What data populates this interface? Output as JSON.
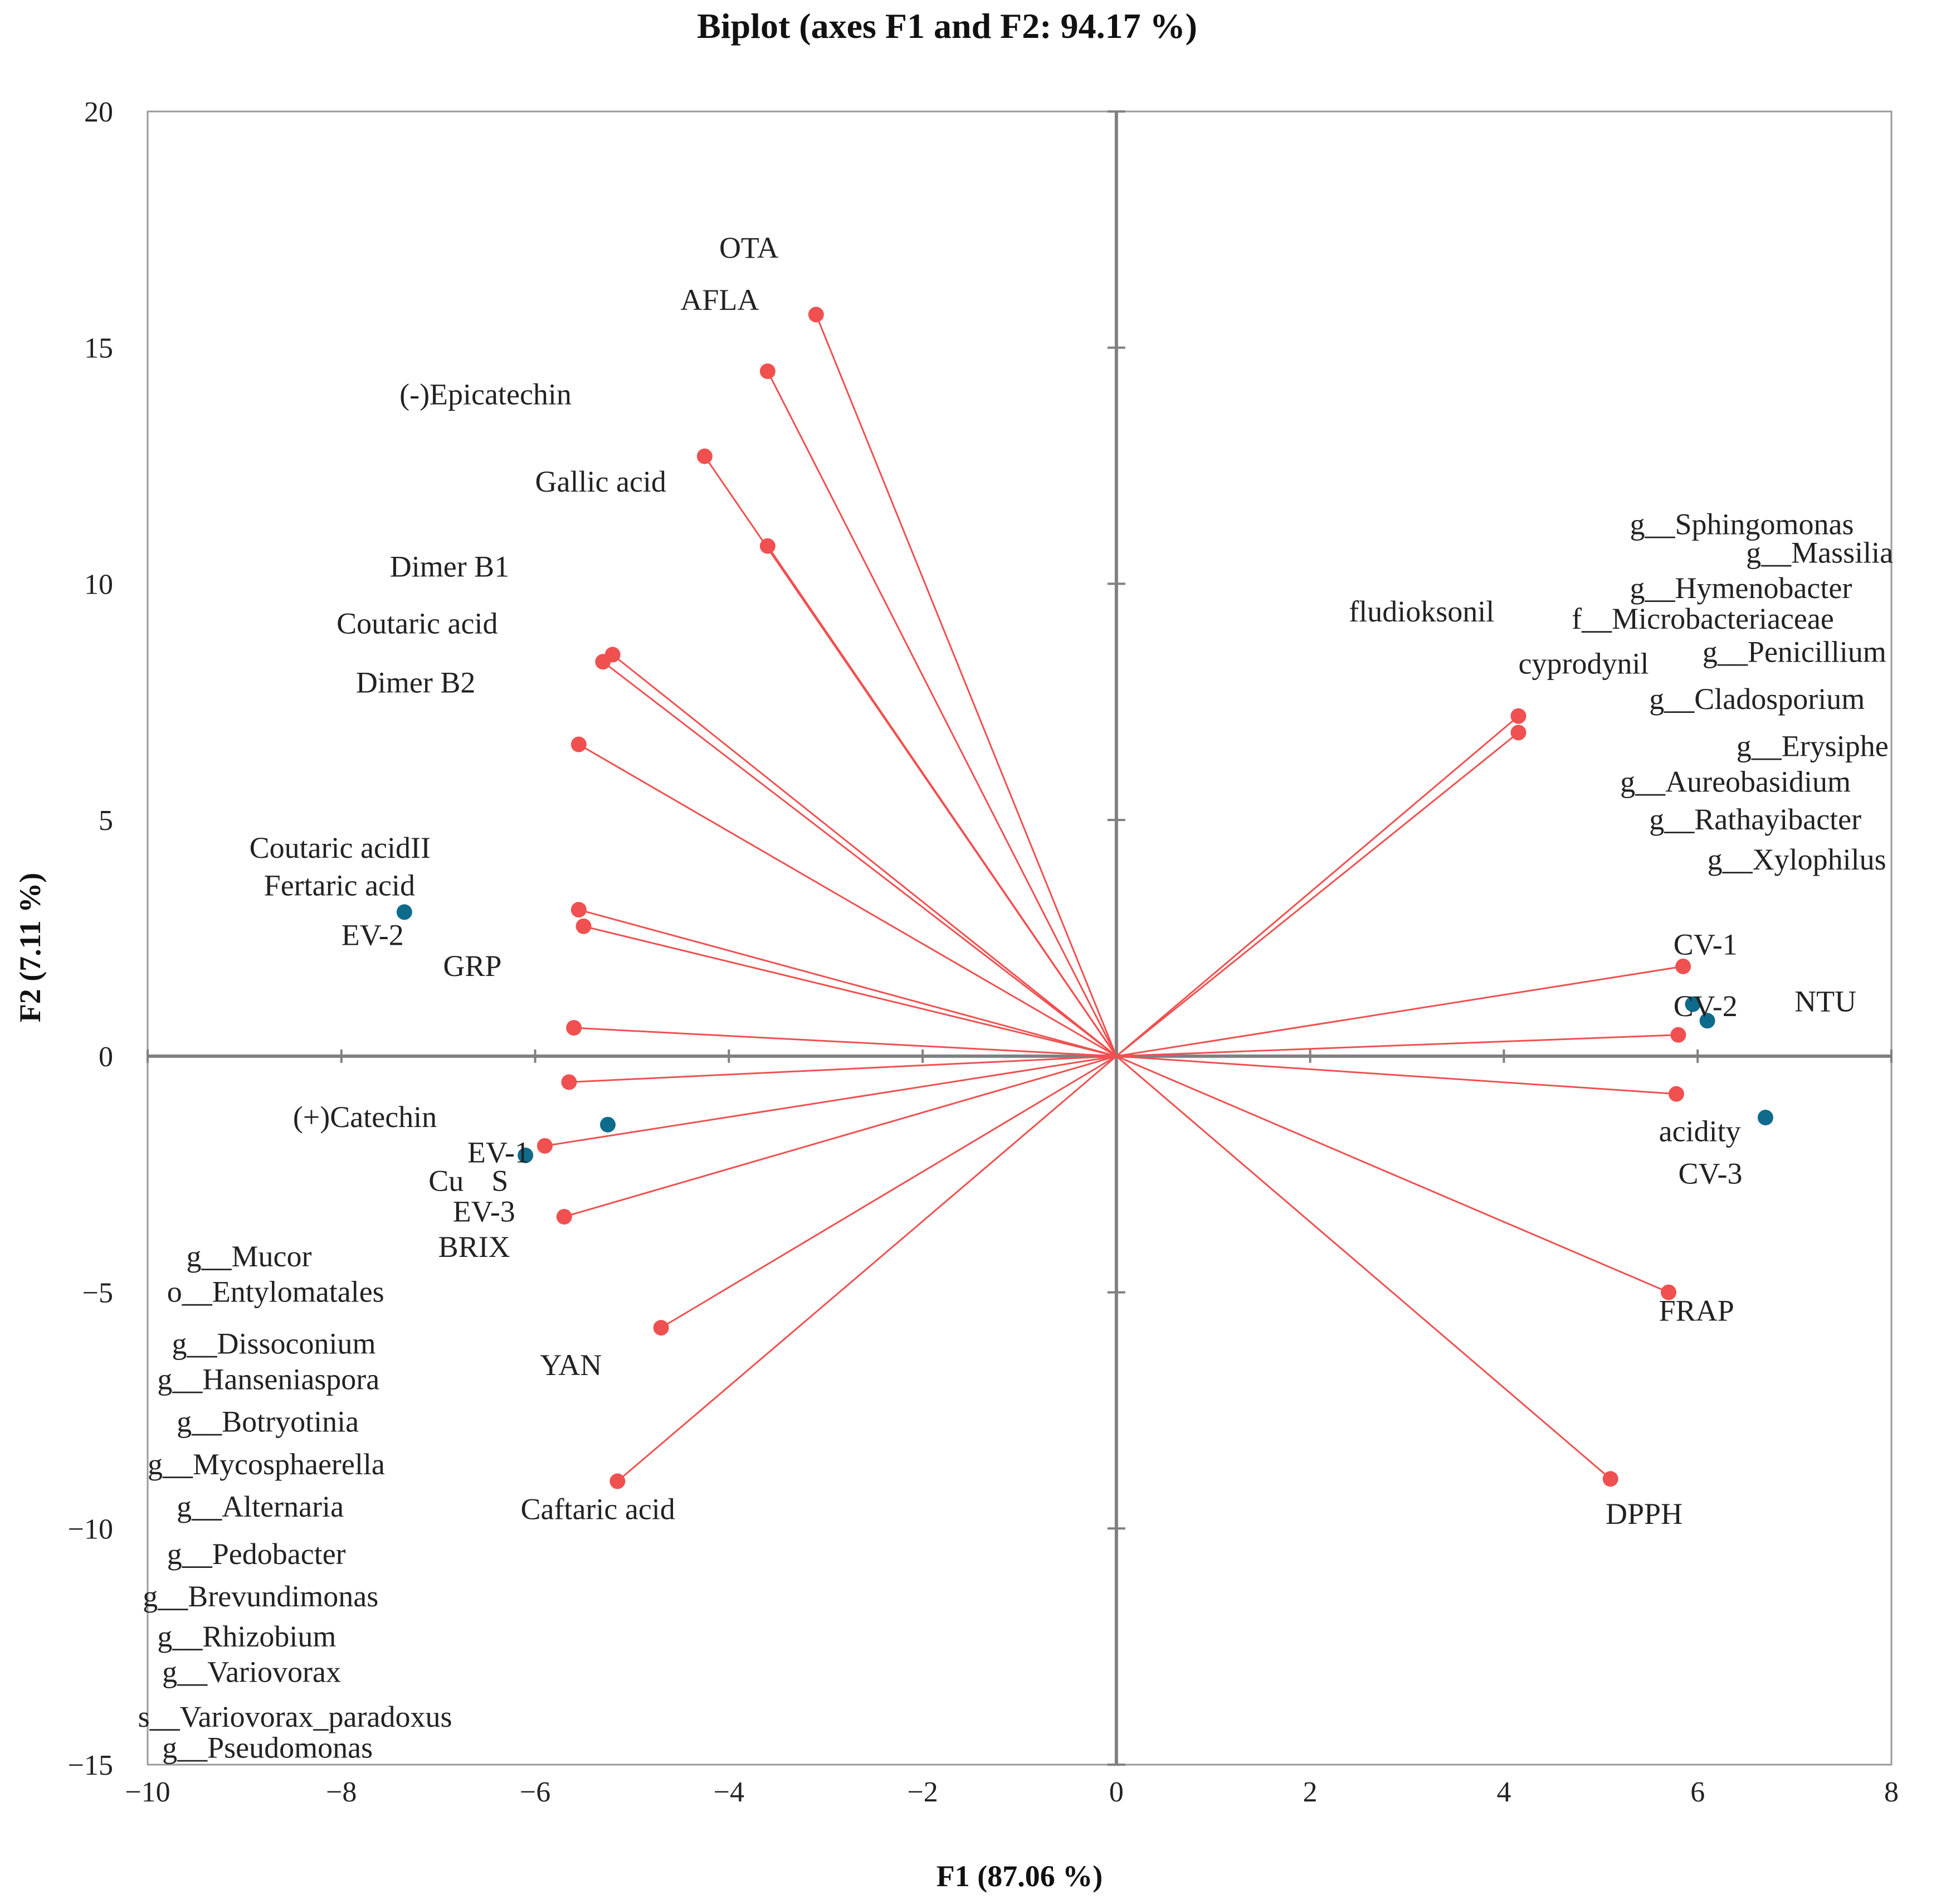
{
  "chart_data": {
    "type": "scatter",
    "title": "Biplot (axes F1 and F2: 94.17 %)",
    "xlabel": "F1 (87.06 %)",
    "ylabel": "F2 (7.11 %)",
    "xlim": [
      -10,
      8
    ],
    "ylim": [
      -15,
      20
    ],
    "x_ticks": [
      -10,
      -8,
      -6,
      -4,
      -2,
      0,
      2,
      4,
      6,
      8
    ],
    "y_ticks": [
      -15,
      -10,
      -5,
      0,
      5,
      10,
      15,
      20
    ],
    "x_tick_labels": [
      "−10",
      "−8",
      "−6",
      "−4",
      "−2",
      "0",
      "2",
      "4",
      "6",
      "8"
    ],
    "y_tick_labels": [
      "−15",
      "−10",
      "−5",
      "0",
      "5",
      "10",
      "15",
      "20"
    ],
    "grid": false,
    "colors": {
      "vectors": "#f05050",
      "observations": "#0e6b8c",
      "axes": "#808080",
      "frame": "#9a9a9a"
    },
    "series": [
      {
        "name": "variables",
        "points": [
          {
            "x": -3.1,
            "y": 15.7
          },
          {
            "x": -3.6,
            "y": 14.5
          },
          {
            "x": -4.25,
            "y": 12.7
          },
          {
            "x": -3.6,
            "y": 10.8
          },
          {
            "x": -5.2,
            "y": 8.5
          },
          {
            "x": -5.3,
            "y": 8.35
          },
          {
            "x": -5.55,
            "y": 6.6
          },
          {
            "x": -5.55,
            "y": 3.1
          },
          {
            "x": -5.5,
            "y": 2.75
          },
          {
            "x": -5.6,
            "y": 0.6
          },
          {
            "x": -5.65,
            "y": -0.55
          },
          {
            "x": -5.9,
            "y": -1.9
          },
          {
            "x": -5.7,
            "y": -3.4
          },
          {
            "x": -4.7,
            "y": -5.75
          },
          {
            "x": -5.15,
            "y": -9.0
          },
          {
            "x": 4.15,
            "y": 7.2
          },
          {
            "x": 4.15,
            "y": 6.85
          },
          {
            "x": 5.85,
            "y": 1.9
          },
          {
            "x": 5.8,
            "y": 0.45
          },
          {
            "x": 5.78,
            "y": -0.8
          },
          {
            "x": 5.7,
            "y": -5.0
          },
          {
            "x": 5.1,
            "y": -8.95
          }
        ]
      },
      {
        "name": "observations",
        "points": [
          {
            "x": -7.35,
            "y": 3.05
          },
          {
            "x": -6.1,
            "y": -2.1
          },
          {
            "x": -5.25,
            "y": -1.45
          },
          {
            "x": 5.95,
            "y": 1.1
          },
          {
            "x": 6.1,
            "y": 0.75
          },
          {
            "x": 6.7,
            "y": -1.3
          }
        ]
      }
    ],
    "labels": [
      {
        "text": "OTA",
        "x": -4.1,
        "y": 16.9
      },
      {
        "text": "AFLA",
        "x": -4.5,
        "y": 15.8
      },
      {
        "text": "(-)Epicatechin",
        "x": -7.4,
        "y": 13.8
      },
      {
        "text": "Gallic acid",
        "x": -6.0,
        "y": 11.95
      },
      {
        "text": "Dimer B1",
        "x": -7.5,
        "y": 10.15
      },
      {
        "text": "Coutaric acid",
        "x": -8.05,
        "y": 8.95
      },
      {
        "text": "Dimer B2",
        "x": -7.85,
        "y": 7.7
      },
      {
        "text": "Coutaric acidII",
        "x": -8.95,
        "y": 4.2
      },
      {
        "text": "Fertaric acid",
        "x": -8.8,
        "y": 3.4
      },
      {
        "text": "EV-2",
        "x": -8.0,
        "y": 2.35
      },
      {
        "text": "GRP",
        "x": -6.95,
        "y": 1.7
      },
      {
        "text": "(+)Catechin",
        "x": -8.5,
        "y": -1.5
      },
      {
        "text": "EV-1",
        "x": -6.7,
        "y": -2.25
      },
      {
        "text": "Cu",
        "x": -7.1,
        "y": -2.85
      },
      {
        "text": "S",
        "x": -6.45,
        "y": -2.85
      },
      {
        "text": "EV-3",
        "x": -6.85,
        "y": -3.5
      },
      {
        "text": "BRIX",
        "x": -7.0,
        "y": -4.25
      },
      {
        "text": "YAN",
        "x": -5.95,
        "y": -6.75
      },
      {
        "text": "Caftaric acid",
        "x": -6.15,
        "y": -9.8
      },
      {
        "text": "fludioksonil",
        "x": 2.4,
        "y": 9.2
      },
      {
        "text": "cyprodynil",
        "x": 4.15,
        "y": 8.1
      },
      {
        "text": "g__Sphingomonas",
        "x": 5.3,
        "y": 11.05
      },
      {
        "text": "g__Massilia",
        "x": 6.5,
        "y": 10.45
      },
      {
        "text": "g__Hymenobacter",
        "x": 5.3,
        "y": 9.7
      },
      {
        "text": "f__Microbacteriaceae",
        "x": 4.7,
        "y": 9.05
      },
      {
        "text": "g__Penicillium",
        "x": 6.05,
        "y": 8.35
      },
      {
        "text": "g__Cladosporium",
        "x": 5.5,
        "y": 7.35
      },
      {
        "text": "g__Erysiphe",
        "x": 6.4,
        "y": 6.35
      },
      {
        "text": "g__Aureobasidium",
        "x": 5.2,
        "y": 5.6
      },
      {
        "text": "g__Rathayibacter",
        "x": 5.5,
        "y": 4.8
      },
      {
        "text": "g__Xylophilus",
        "x": 6.1,
        "y": 3.95
      },
      {
        "text": "CV-1",
        "x": 5.75,
        "y": 2.15
      },
      {
        "text": "CV-2",
        "x": 5.75,
        "y": 0.85
      },
      {
        "text": "NTU",
        "x": 7.0,
        "y": 0.95
      },
      {
        "text": "acidity",
        "x": 5.6,
        "y": -1.8
      },
      {
        "text": "CV-3",
        "x": 5.8,
        "y": -2.7
      },
      {
        "text": "FRAP",
        "x": 5.6,
        "y": -5.6
      },
      {
        "text": "DPPH",
        "x": 5.05,
        "y": -9.9
      },
      {
        "text": "g__Mucor",
        "x": -9.6,
        "y": -4.45
      },
      {
        "text": "o__Entylomatales",
        "x": -9.8,
        "y": -5.2
      },
      {
        "text": "g__Dissoconium",
        "x": -9.75,
        "y": -6.3
      },
      {
        "text": "g__Hanseniaspora",
        "x": -9.9,
        "y": -7.05
      },
      {
        "text": "g__Botryotinia",
        "x": -9.7,
        "y": -7.95
      },
      {
        "text": "g__Mycosphaerella",
        "x": -10.0,
        "y": -8.85
      },
      {
        "text": "g__Alternaria",
        "x": -9.7,
        "y": -9.75
      },
      {
        "text": "g__Pedobacter",
        "x": -9.8,
        "y": -10.75
      },
      {
        "text": "g__Brevundimonas",
        "x": -10.05,
        "y": -11.65
      },
      {
        "text": "g__Rhizobium",
        "x": -9.9,
        "y": -12.5
      },
      {
        "text": "g__Variovorax",
        "x": -9.85,
        "y": -13.25
      },
      {
        "text": "s__Variovorax_paradoxus",
        "x": -10.1,
        "y": -14.2
      },
      {
        "text": "g__Pseudomonas",
        "x": -9.85,
        "y": -14.85
      }
    ]
  }
}
